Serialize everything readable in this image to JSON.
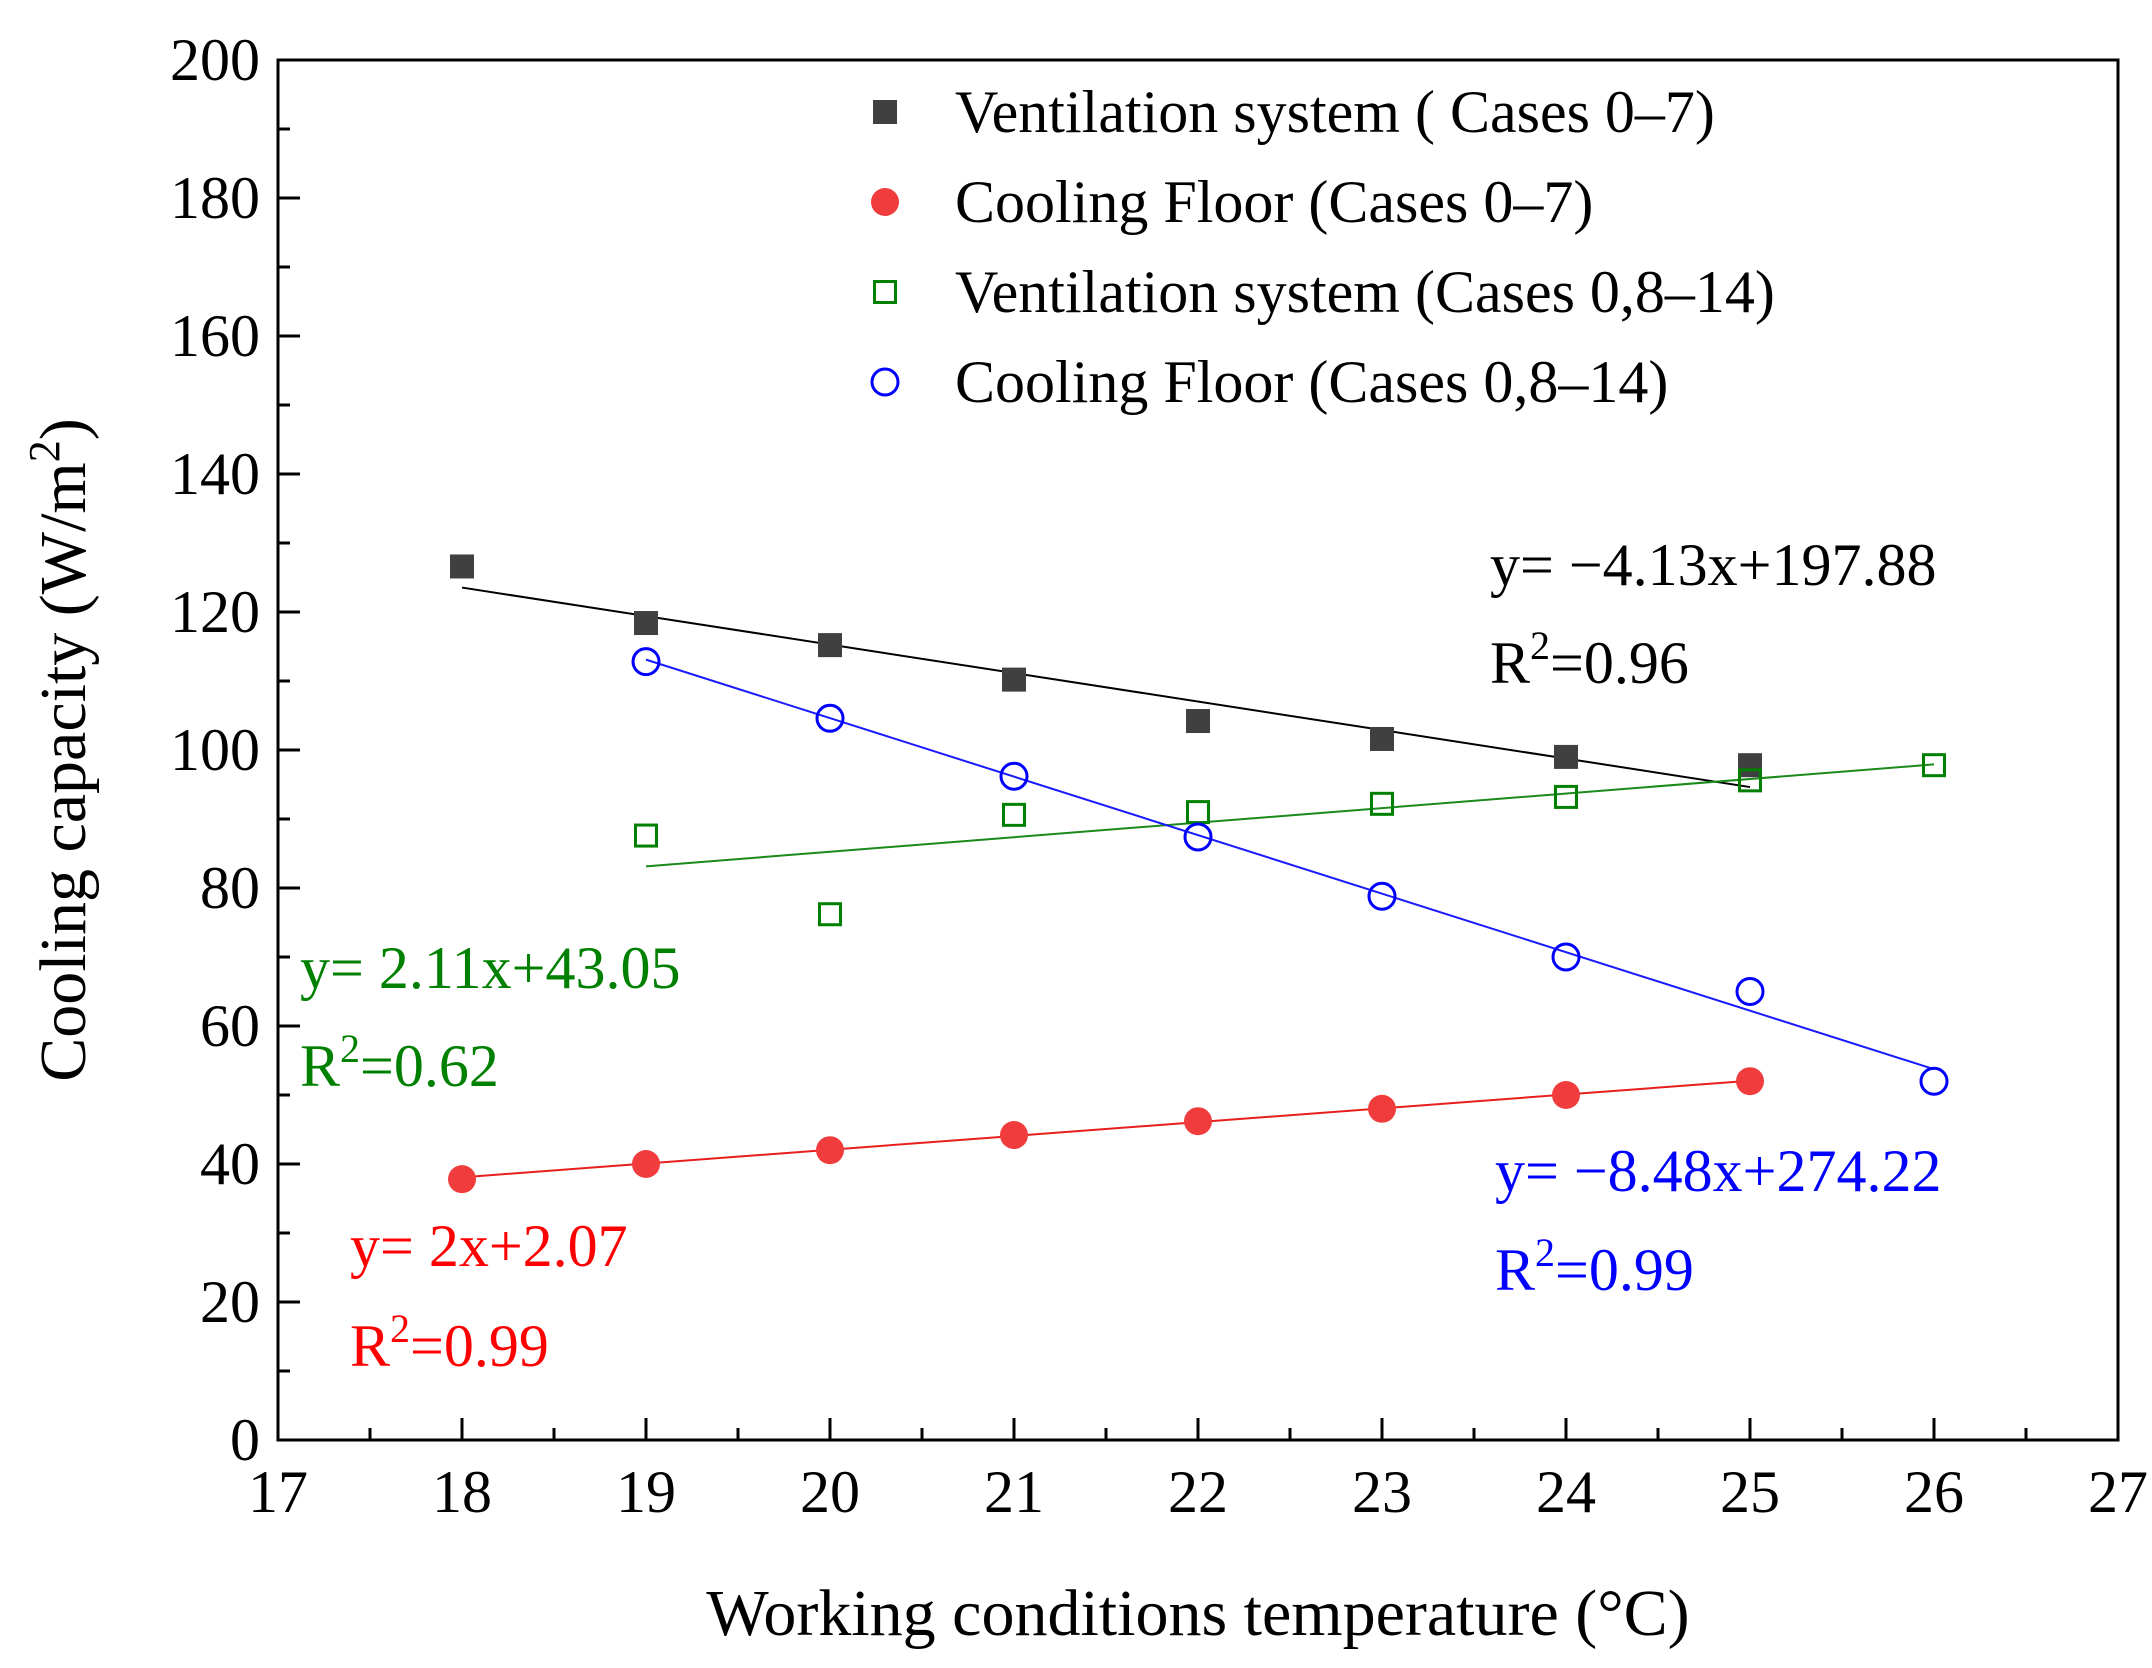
{
  "chart_data": {
    "type": "scatter",
    "xlabel": "Working conditions temperature (°C)",
    "ylabel": "Cooling capacity (W/m²)",
    "ylabel_parts": {
      "main": "Cooling capacity (W/m",
      "sup": "2",
      "end": ")"
    },
    "xlim": [
      17,
      27
    ],
    "ylim": [
      0,
      200
    ],
    "xticks": [
      17,
      18,
      19,
      20,
      21,
      22,
      23,
      24,
      25,
      26,
      27
    ],
    "yticks": [
      0,
      20,
      40,
      60,
      80,
      100,
      120,
      140,
      160,
      180,
      200
    ],
    "grid": false,
    "legend_position": "top-right",
    "series": [
      {
        "name": "Ventilation system ( Cases 0–7)",
        "marker": "square-filled",
        "color": "#404040",
        "line_color": "#000000",
        "x": [
          18,
          19,
          20,
          21,
          22,
          23,
          24,
          25
        ],
        "y": [
          126.6,
          118.4,
          115.2,
          110.2,
          104.2,
          101.6,
          99.0,
          97.8
        ],
        "fit": {
          "slope": -4.13,
          "intercept": 197.88,
          "x_range": [
            18,
            25
          ]
        },
        "equation": "y= −4.13x+197.88",
        "r2_value": "=0.96"
      },
      {
        "name": "Cooling Floor (Cases 0–7)",
        "marker": "circle-filled",
        "color": "#f03c3c",
        "line_color": "#e81e1e",
        "x": [
          18,
          19,
          20,
          21,
          22,
          23,
          24,
          25
        ],
        "y": [
          37.8,
          40.0,
          42.0,
          44.2,
          46.2,
          48.0,
          50.0,
          52.0
        ],
        "fit": {
          "slope": 2.0,
          "intercept": 2.07,
          "x_range": [
            18,
            25
          ]
        },
        "equation": "y= 2x+2.07",
        "r2_value": "=0.99"
      },
      {
        "name": "Ventilation system (Cases 0,8–14)",
        "marker": "square-open",
        "color": "#008000",
        "line_color": "#1a8a1a",
        "x": [
          19,
          20,
          21,
          22,
          23,
          24,
          25,
          26
        ],
        "y": [
          87.6,
          76.2,
          90.6,
          91.0,
          92.2,
          93.2,
          95.6,
          97.8
        ],
        "fit": {
          "slope": 2.11,
          "intercept": 43.05,
          "x_range": [
            19,
            26
          ]
        },
        "equation": "y= 2.11x+43.05",
        "r2_value": "=0.62"
      },
      {
        "name": "Cooling Floor (Cases 0,8–14)",
        "marker": "circle-open",
        "color": "#0000ff",
        "line_color": "#1a1aff",
        "x": [
          19,
          20,
          21,
          22,
          23,
          24,
          25,
          26
        ],
        "y": [
          112.8,
          104.6,
          96.2,
          87.4,
          78.8,
          70.0,
          65.0,
          52.0
        ],
        "fit": {
          "slope": -8.48,
          "intercept": 274.22,
          "x_range": [
            19,
            26
          ]
        },
        "equation": "y= −8.48x+274.22",
        "r2_value": "=0.99"
      }
    ],
    "r2_prefix": "R",
    "r2_sup": "2"
  }
}
